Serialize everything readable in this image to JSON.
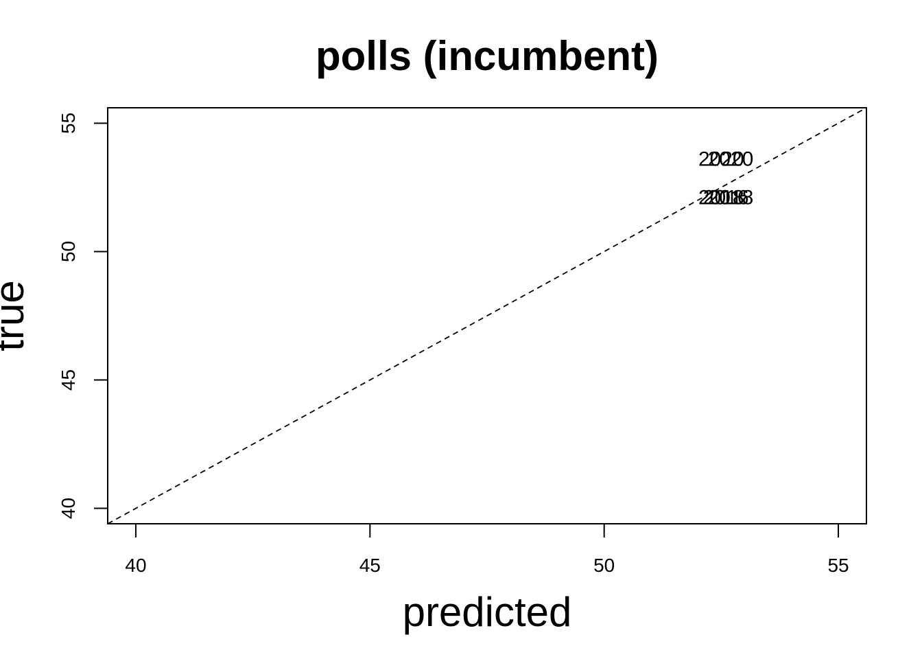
{
  "chart_data": {
    "type": "scatter",
    "title": "polls (incumbent)",
    "xlabel": "predicted",
    "ylabel": "true",
    "xlim": [
      39.4,
      55.6
    ],
    "ylim": [
      39.4,
      55.6
    ],
    "xticks": [
      40,
      45,
      50,
      55
    ],
    "yticks": [
      40,
      45,
      50,
      55
    ],
    "grid": false,
    "reference_line": {
      "from": [
        39.4,
        39.4
      ],
      "to": [
        55.6,
        55.6
      ],
      "style": "dashed"
    },
    "points": [
      {
        "label": "2020",
        "x": 52.5,
        "y": 53.6
      },
      {
        "label": "2020",
        "x": 52.7,
        "y": 53.6
      },
      {
        "label": "2018",
        "x": 52.5,
        "y": 52.1
      },
      {
        "label": "2018",
        "x": 52.7,
        "y": 52.1
      },
      {
        "label": "2016",
        "x": 52.6,
        "y": 52.1
      }
    ]
  }
}
